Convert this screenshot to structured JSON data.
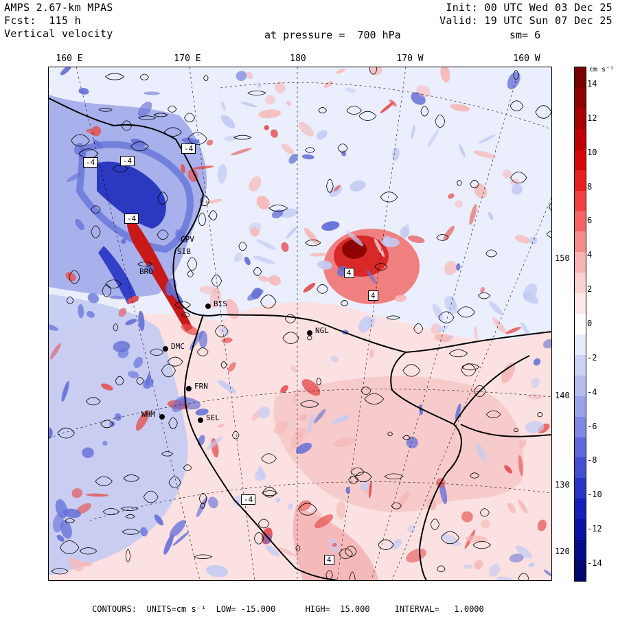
{
  "header": {
    "model": "AMPS 2.67-km MPAS",
    "forecast": "Fcst:  115 h",
    "field": "Vertical velocity",
    "init": "Init: 00 UTC Wed 03 Dec 25",
    "valid": "Valid: 19 UTC Sun 07 Dec 25",
    "level": "at pressure =  700 hPa",
    "smoothing": "sm= 6"
  },
  "longitude_labels": [
    "160 E",
    "170 E",
    "180",
    "170 W",
    "160 W"
  ],
  "latitude_labels": [
    "150 W",
    "140 W",
    "130 W",
    "120 W"
  ],
  "colorbar": {
    "unit_label": "cm s⁻¹",
    "tick_labels": [
      "14",
      "12",
      "10",
      "8",
      "6",
      "4",
      "2",
      "0",
      "-2",
      "-4",
      "-6",
      "-8",
      "-10",
      "-12",
      "-14"
    ],
    "colors": [
      "#7a0000",
      "#8e0000",
      "#a80000",
      "#bf0000",
      "#d40808",
      "#e82020",
      "#f24040",
      "#f46464",
      "#f58c8c",
      "#f8b4b4",
      "#fad2d2",
      "#fde8e8",
      "#ffffff",
      "#e8ebfc",
      "#cdd3f6",
      "#b4bcf0",
      "#9aa4ea",
      "#7e88e2",
      "#5f6ad8",
      "#4450d0",
      "#2a36c4",
      "#1420b8",
      "#0a12a0",
      "#060c88",
      "#020870"
    ],
    "range": [
      -15,
      15
    ]
  },
  "stations": [
    "CPV",
    "SIB",
    "BRO",
    "BIS",
    "NGL",
    "DMC",
    "FRN",
    "WHM",
    "SEL"
  ],
  "highlow_labels": [
    "-4",
    "-4",
    "-4",
    "4",
    "-4",
    "4",
    "-4",
    "4"
  ],
  "footer": {
    "contours": "CONTOURS:  UNITS=cm s⁻¹  LOW= -15.000      HIGH=  15.000     INTERVAL=   1.0000"
  },
  "map_colors": {
    "background": "#ebeefc",
    "land_blue": "#c3cbf4",
    "ice_pink": "#fbe1e1",
    "pink": "#f6b8b8",
    "red": "#e65050",
    "dark_red": "#9c0808",
    "blue": "#6470d8",
    "dark_blue": "#1b27b8",
    "contour": "#000000"
  }
}
